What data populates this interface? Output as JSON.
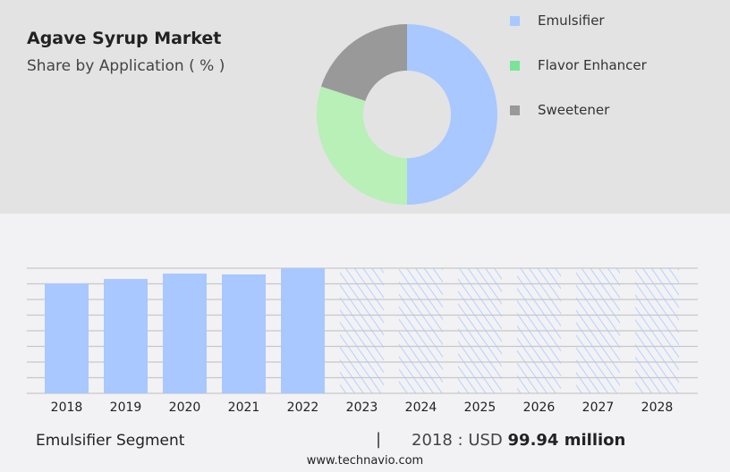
{
  "header": {
    "title": "Agave Syrup Market",
    "subtitle": "Share by Application ( % )"
  },
  "chart_data": [
    {
      "type": "pie",
      "style": "donut",
      "categories": [
        "Emulsifier",
        "Flavor Enhancer",
        "Sweetener"
      ],
      "values": [
        50,
        30,
        20
      ],
      "colors": [
        "#a8c8ff",
        "#b8f0b8",
        "#999999"
      ],
      "legend_colors": [
        "#a8c8ff",
        "#77e497",
        "#999999"
      ],
      "legend": "right"
    },
    {
      "type": "bar",
      "categories": [
        "2018",
        "2019",
        "2020",
        "2021",
        "2022",
        "2023",
        "2024",
        "2025",
        "2026",
        "2027",
        "2028"
      ],
      "values": [
        99.94,
        104.0,
        108.9,
        108.1,
        113.8,
        null,
        null,
        null,
        null,
        null,
        null
      ],
      "forecast_categories": [
        "2023",
        "2024",
        "2025",
        "2026",
        "2027",
        "2028"
      ],
      "ylim": [
        0,
        113.8
      ],
      "grid": true,
      "color": "#a8c8ff",
      "forecast_style": "hatched"
    }
  ],
  "footer": {
    "segment": "Emulsifier Segment",
    "separator": "|",
    "year_label": "2018 : USD",
    "value": "99.94 million",
    "site": "www.technavio.com"
  }
}
